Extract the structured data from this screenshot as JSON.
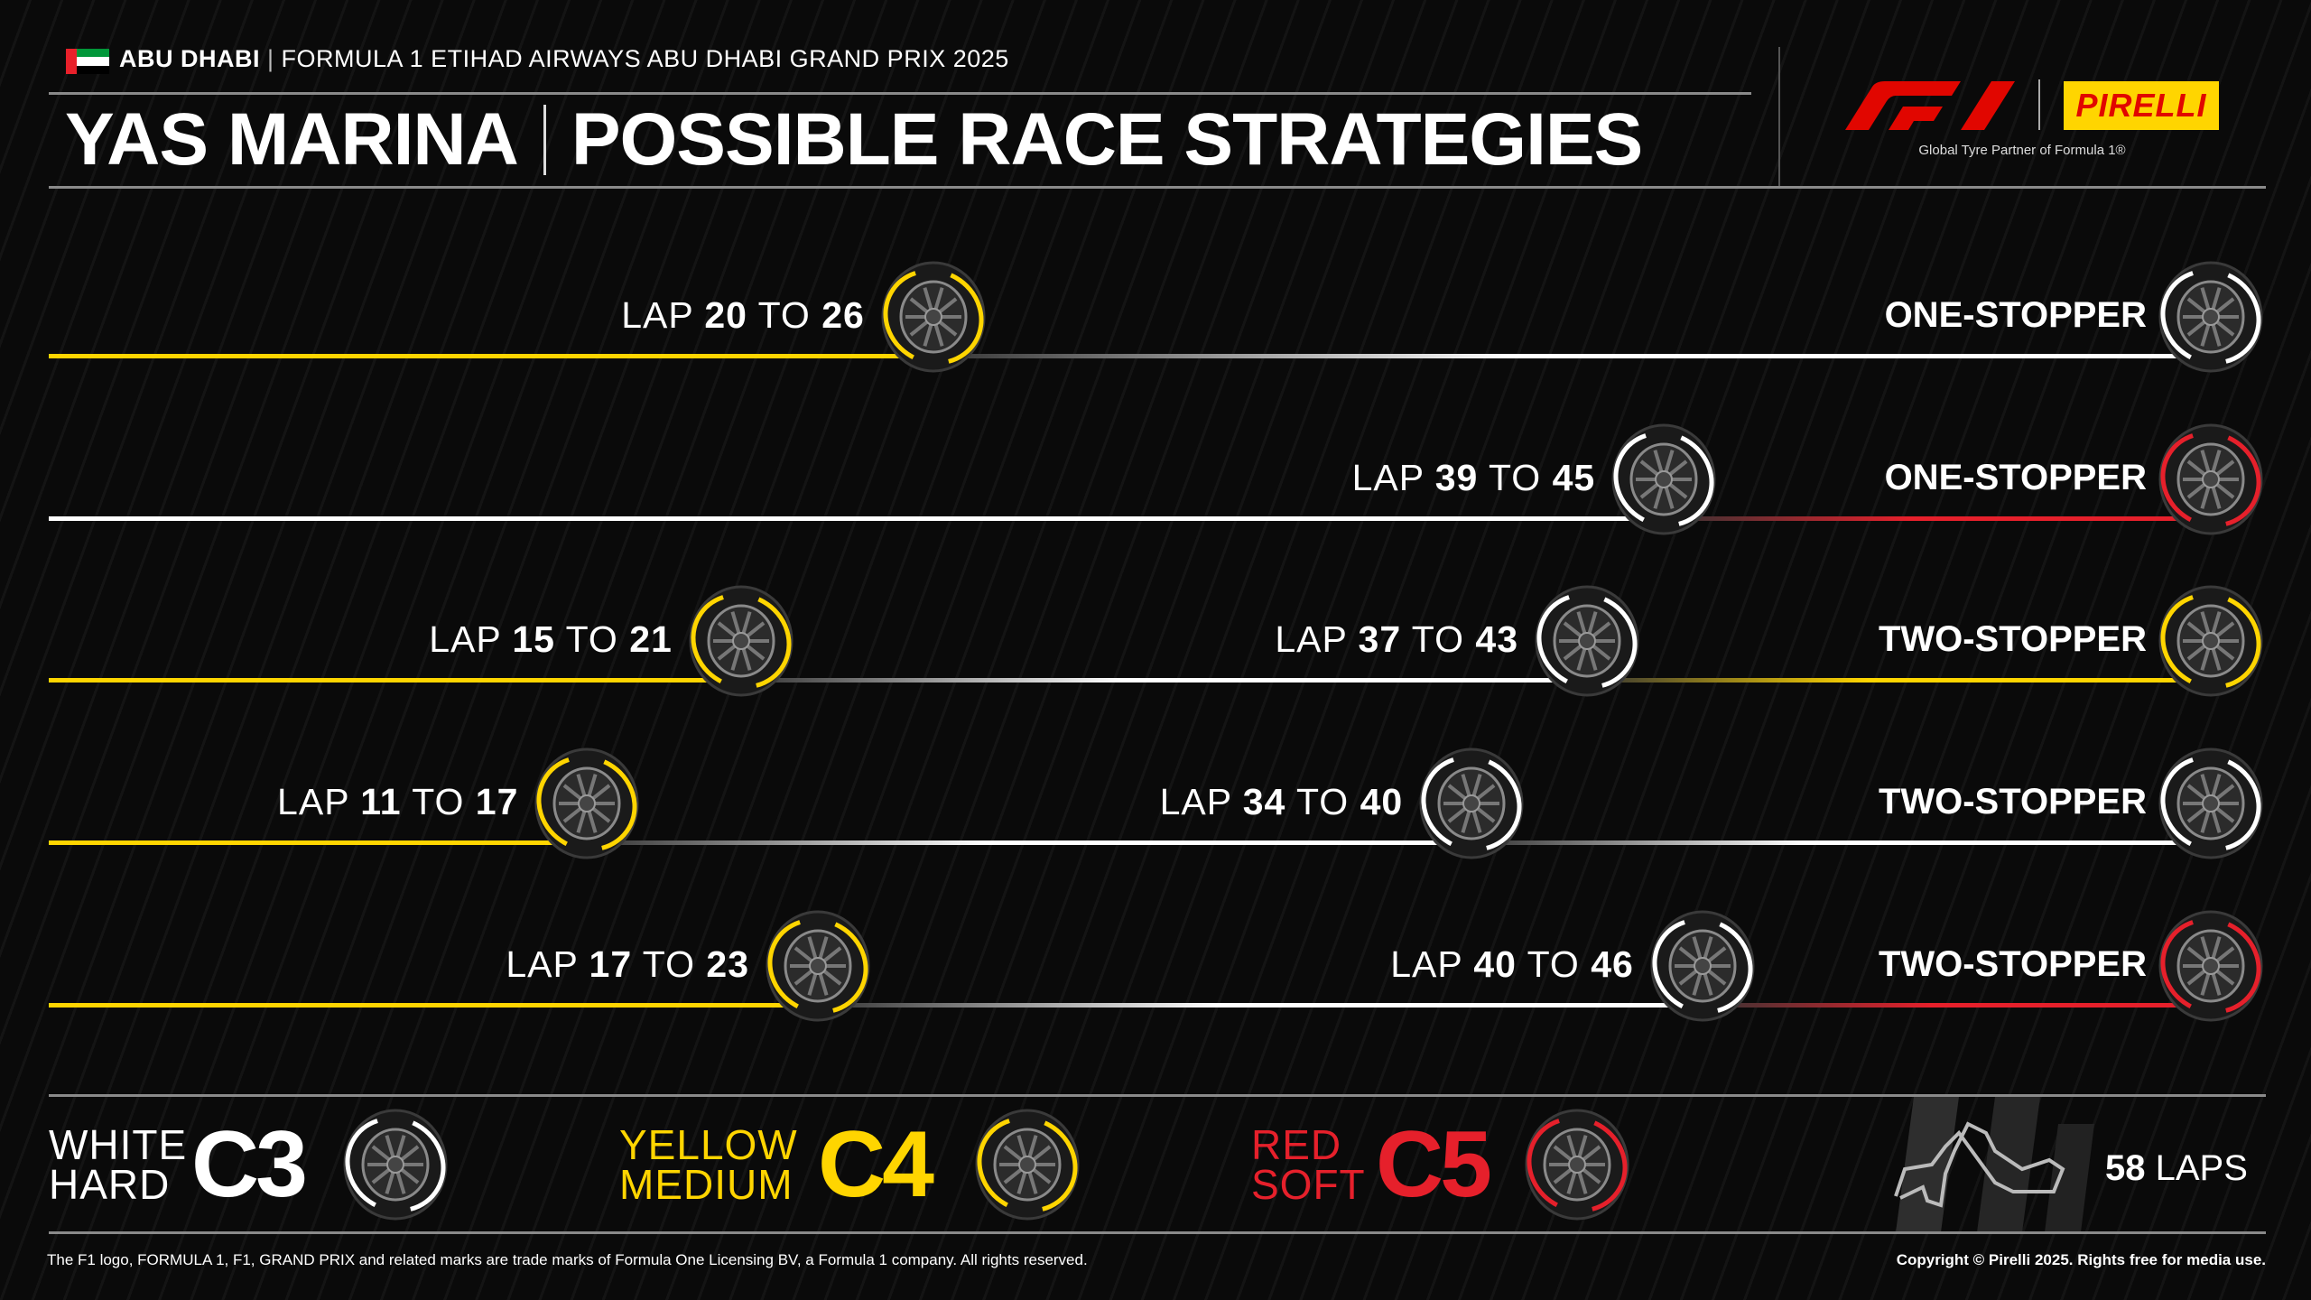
{
  "header": {
    "country": "ABU DHABI",
    "event": "FORMULA 1 ETIHAD AIRWAYS ABU DHABI GRAND PRIX 2025",
    "circuit": "YAS MARINA",
    "title": "POSSIBLE RACE STRATEGIES",
    "partner_tagline": "Global Tyre Partner of Formula 1®",
    "pirelli_logo": "PIRELLI",
    "f1_logo": "F1"
  },
  "colors": {
    "hard": "#ffffff",
    "medium": "#ffd500",
    "soft": "#e6202b",
    "background": "#0a0a0a"
  },
  "strategies": [
    {
      "label": "ONE-STOPPER",
      "stints": [
        "medium",
        "hard"
      ],
      "stops": [
        {
          "prefix": "LAP ",
          "from": "20",
          "mid": " TO ",
          "to": "26"
        }
      ]
    },
    {
      "label": "ONE-STOPPER",
      "stints": [
        "hard",
        "soft"
      ],
      "stops": [
        {
          "prefix": "LAP ",
          "from": "39",
          "mid": " TO ",
          "to": "45"
        }
      ]
    },
    {
      "label": "TWO-STOPPER",
      "stints": [
        "medium",
        "hard",
        "medium"
      ],
      "stops": [
        {
          "prefix": "LAP ",
          "from": "15",
          "mid": " TO ",
          "to": "21"
        },
        {
          "prefix": "LAP ",
          "from": "37",
          "mid": " TO ",
          "to": "43"
        }
      ]
    },
    {
      "label": "TWO-STOPPER",
      "stints": [
        "medium",
        "hard",
        "hard"
      ],
      "stops": [
        {
          "prefix": "LAP ",
          "from": "11",
          "mid": " TO ",
          "to": "17"
        },
        {
          "prefix": "LAP ",
          "from": "34",
          "mid": " TO ",
          "to": "40"
        }
      ]
    },
    {
      "label": "TWO-STOPPER",
      "stints": [
        "medium",
        "hard",
        "soft"
      ],
      "stops": [
        {
          "prefix": "LAP ",
          "from": "17",
          "mid": " TO ",
          "to": "23"
        },
        {
          "prefix": "LAP ",
          "from": "40",
          "mid": " TO ",
          "to": "46"
        }
      ]
    }
  ],
  "legend": [
    {
      "compound": "hard",
      "color_name": "WHITE",
      "type": "HARD",
      "code": "C3"
    },
    {
      "compound": "medium",
      "color_name": "YELLOW",
      "type": "MEDIUM",
      "code": "C4"
    },
    {
      "compound": "soft",
      "color_name": "RED",
      "type": "SOFT",
      "code": "C5"
    }
  ],
  "race": {
    "laps_number": "58",
    "laps_label": " LAPS"
  },
  "footer": {
    "trademark": "The F1 logo, FORMULA 1, F1, GRAND PRIX and related marks are trade marks of Formula One Licensing BV, a Formula 1 company. All rights reserved.",
    "copyright": "Copyright © Pirelli 2025. Rights free for media use."
  }
}
